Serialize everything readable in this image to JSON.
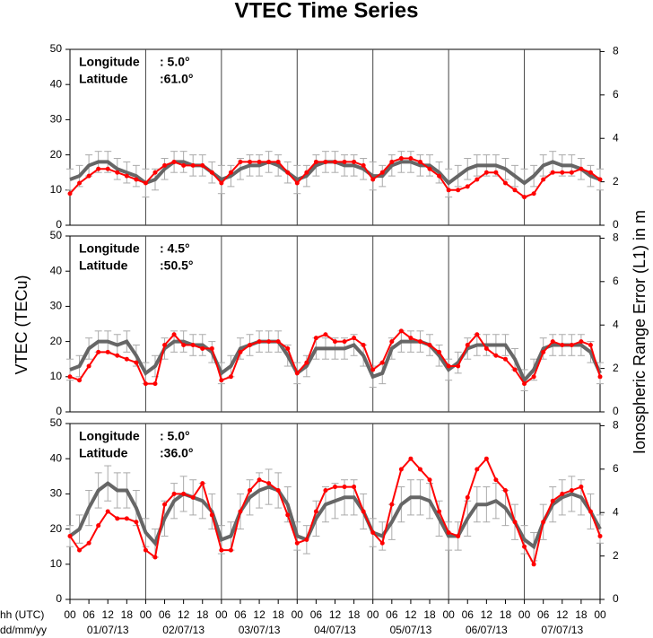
{
  "title": "VTEC Time Series",
  "ylabel": "VTEC (TECu)",
  "y2label": "Ionospheric Range Error (L1) in m",
  "x_axis_labels": [
    "hh (UTC)",
    "dd/mm/yy"
  ],
  "chart_data": [
    {
      "type": "line",
      "info": [
        [
          "Longitude",
          ":  5.0°"
        ],
        [
          "Latitude",
          ":61.0°"
        ]
      ],
      "x": [
        0,
        3,
        6,
        9,
        12,
        15,
        18,
        21,
        24,
        27,
        30,
        33,
        36,
        39,
        42,
        45,
        48,
        51,
        54,
        57,
        60,
        63,
        66,
        69,
        72,
        75,
        78,
        81,
        84,
        87,
        90,
        93,
        96,
        99,
        102,
        105,
        108,
        111,
        114,
        117,
        120,
        123,
        126,
        129,
        132,
        135,
        138,
        141,
        144,
        147,
        150,
        153,
        156,
        159,
        162,
        165,
        168
      ],
      "xlim": [
        0,
        168
      ],
      "ylim": [
        0,
        50
      ],
      "yticks": [
        0,
        10,
        20,
        30,
        40,
        50
      ],
      "y2lim": [
        0,
        8.1
      ],
      "y2ticks": [
        0,
        2,
        4,
        6,
        8
      ],
      "vlines": [
        24,
        48,
        72,
        96,
        120,
        144
      ],
      "series": [
        {
          "color": "#666666",
          "values": [
            13,
            14,
            17,
            18,
            18,
            16,
            15,
            14,
            12,
            13,
            16,
            18,
            18,
            17,
            17,
            15,
            13,
            14,
            16,
            17,
            17,
            18,
            17,
            15,
            13,
            14,
            17,
            18,
            18,
            17,
            17,
            16,
            14,
            14,
            17,
            18,
            18,
            17,
            17,
            15,
            12,
            14,
            16,
            17,
            17,
            17,
            16,
            14,
            12,
            14,
            17,
            18,
            17,
            17,
            16,
            14,
            13
          ],
          "errors": [
            3,
            3,
            3,
            3,
            3,
            3,
            3,
            3,
            4,
            3,
            3,
            3,
            3,
            3,
            3,
            3,
            4,
            3,
            3,
            3,
            3,
            3,
            3,
            3,
            4,
            3,
            3,
            3,
            3,
            3,
            3,
            3,
            4,
            3,
            3,
            3,
            3,
            3,
            3,
            3,
            4,
            3,
            3,
            3,
            3,
            3,
            3,
            3,
            4,
            3,
            3,
            3,
            3,
            3,
            3,
            3,
            3
          ]
        },
        {
          "color": "#ff0000",
          "values": [
            9,
            12,
            14,
            16,
            16,
            15,
            14,
            13,
            12,
            15,
            17,
            18,
            17,
            17,
            17,
            15,
            12,
            15,
            18,
            18,
            18,
            18,
            18,
            15,
            12,
            15,
            18,
            18,
            18,
            18,
            18,
            17,
            13,
            15,
            18,
            19,
            19,
            18,
            16,
            14,
            10,
            10,
            11,
            13,
            15,
            15,
            12,
            10,
            8,
            9,
            13,
            15,
            15,
            15,
            16,
            15,
            13
          ]
        }
      ]
    },
    {
      "type": "line",
      "info": [
        [
          "Longitude",
          ":  4.5°"
        ],
        [
          "Latitude",
          ":50.5°"
        ]
      ],
      "x": [
        0,
        3,
        6,
        9,
        12,
        15,
        18,
        21,
        24,
        27,
        30,
        33,
        36,
        39,
        42,
        45,
        48,
        51,
        54,
        57,
        60,
        63,
        66,
        69,
        72,
        75,
        78,
        81,
        84,
        87,
        90,
        93,
        96,
        99,
        102,
        105,
        108,
        111,
        114,
        117,
        120,
        123,
        126,
        129,
        132,
        135,
        138,
        141,
        144,
        147,
        150,
        153,
        156,
        159,
        162,
        165,
        168
      ],
      "xlim": [
        0,
        168
      ],
      "ylim": [
        0,
        50
      ],
      "yticks": [
        0,
        10,
        20,
        30,
        40,
        50
      ],
      "y2lim": [
        0,
        8.1
      ],
      "y2ticks": [
        0,
        2,
        4,
        6,
        8
      ],
      "vlines": [
        24,
        48,
        72,
        96,
        120,
        144
      ],
      "series": [
        {
          "color": "#666666",
          "values": [
            12,
            13,
            18,
            20,
            20,
            19,
            20,
            16,
            11,
            13,
            18,
            20,
            20,
            19,
            19,
            17,
            11,
            13,
            18,
            19,
            20,
            20,
            20,
            16,
            11,
            13,
            18,
            18,
            18,
            18,
            19,
            16,
            10,
            11,
            18,
            20,
            20,
            20,
            19,
            16,
            12,
            14,
            18,
            19,
            19,
            19,
            19,
            15,
            9,
            12,
            18,
            19,
            19,
            19,
            19,
            17,
            11
          ],
          "errors": [
            3,
            3,
            3,
            3,
            3,
            3,
            3,
            3,
            3,
            3,
            3,
            3,
            3,
            3,
            3,
            3,
            3,
            3,
            3,
            3,
            3,
            3,
            3,
            3,
            3,
            3,
            3,
            3,
            3,
            3,
            3,
            3,
            3,
            3,
            3,
            3,
            3,
            3,
            3,
            3,
            3,
            3,
            3,
            3,
            3,
            3,
            3,
            3,
            3,
            3,
            3,
            3,
            3,
            3,
            3,
            3,
            3
          ]
        },
        {
          "color": "#ff0000",
          "values": [
            10,
            9,
            13,
            17,
            17,
            16,
            15,
            14,
            8,
            8,
            19,
            22,
            19,
            19,
            18,
            18,
            9,
            10,
            17,
            19,
            20,
            20,
            20,
            18,
            11,
            14,
            21,
            22,
            20,
            20,
            21,
            19,
            12,
            14,
            20,
            23,
            21,
            20,
            19,
            17,
            13,
            13,
            19,
            22,
            18,
            16,
            15,
            12,
            8,
            10,
            17,
            20,
            19,
            19,
            20,
            19,
            10
          ]
        }
      ]
    },
    {
      "type": "line",
      "info": [
        [
          "Longitude",
          ":  5.0°"
        ],
        [
          "Latitude",
          ":36.0°"
        ]
      ],
      "x": [
        0,
        3,
        6,
        9,
        12,
        15,
        18,
        21,
        24,
        27,
        30,
        33,
        36,
        39,
        42,
        45,
        48,
        51,
        54,
        57,
        60,
        63,
        66,
        69,
        72,
        75,
        78,
        81,
        84,
        87,
        90,
        93,
        96,
        99,
        102,
        105,
        108,
        111,
        114,
        117,
        120,
        123,
        126,
        129,
        132,
        135,
        138,
        141,
        144,
        147,
        150,
        153,
        156,
        159,
        162,
        165,
        168
      ],
      "xlim": [
        0,
        168
      ],
      "ylim": [
        0,
        50
      ],
      "yticks": [
        0,
        10,
        20,
        30,
        40,
        50
      ],
      "y2lim": [
        0,
        8.1
      ],
      "y2ticks": [
        0,
        2,
        4,
        6,
        8
      ],
      "vlines": [
        24,
        48,
        72,
        96,
        120,
        144
      ],
      "xticks": [
        {
          "value": 0,
          "label": "00"
        },
        {
          "value": 6,
          "label": "06"
        },
        {
          "value": 12,
          "label": "12"
        },
        {
          "value": 18,
          "label": "18"
        },
        {
          "value": 24,
          "label": "00"
        },
        {
          "value": 30,
          "label": "06"
        },
        {
          "value": 36,
          "label": "12"
        },
        {
          "value": 42,
          "label": "18"
        },
        {
          "value": 48,
          "label": "00"
        },
        {
          "value": 54,
          "label": "06"
        },
        {
          "value": 60,
          "label": "12"
        },
        {
          "value": 66,
          "label": "18"
        },
        {
          "value": 72,
          "label": "00"
        },
        {
          "value": 78,
          "label": "06"
        },
        {
          "value": 84,
          "label": "12"
        },
        {
          "value": 90,
          "label": "18"
        },
        {
          "value": 96,
          "label": "00"
        },
        {
          "value": 102,
          "label": "06"
        },
        {
          "value": 108,
          "label": "12"
        },
        {
          "value": 114,
          "label": "18"
        },
        {
          "value": 120,
          "label": "00"
        },
        {
          "value": 126,
          "label": "06"
        },
        {
          "value": 132,
          "label": "12"
        },
        {
          "value": 138,
          "label": "18"
        },
        {
          "value": 144,
          "label": "00"
        },
        {
          "value": 150,
          "label": "06"
        },
        {
          "value": 156,
          "label": "12"
        },
        {
          "value": 162,
          "label": "18"
        },
        {
          "value": 168,
          "label": "00"
        }
      ],
      "date_ticks": [
        {
          "value": 12,
          "label": "01/07/13"
        },
        {
          "value": 36,
          "label": "02/07/13"
        },
        {
          "value": 60,
          "label": "03/07/13"
        },
        {
          "value": 84,
          "label": "04/07/13"
        },
        {
          "value": 108,
          "label": "05/07/13"
        },
        {
          "value": 132,
          "label": "06/07/13"
        },
        {
          "value": 156,
          "label": "07/07/13"
        }
      ],
      "series": [
        {
          "color": "#666666",
          "values": [
            18,
            20,
            26,
            31,
            33,
            31,
            31,
            26,
            19,
            16,
            23,
            28,
            30,
            29,
            28,
            25,
            17,
            18,
            25,
            29,
            31,
            32,
            31,
            27,
            18,
            17,
            23,
            27,
            28,
            29,
            29,
            25,
            19,
            18,
            22,
            27,
            29,
            29,
            28,
            23,
            18,
            18,
            23,
            27,
            27,
            28,
            26,
            22,
            17,
            15,
            22,
            27,
            29,
            30,
            29,
            25,
            20
          ],
          "errors": [
            3,
            4,
            5,
            5,
            5,
            5,
            5,
            5,
            4,
            4,
            5,
            5,
            5,
            5,
            5,
            5,
            4,
            4,
            5,
            5,
            5,
            5,
            5,
            5,
            4,
            4,
            5,
            5,
            5,
            5,
            5,
            5,
            4,
            4,
            5,
            5,
            5,
            5,
            5,
            5,
            4,
            4,
            5,
            5,
            5,
            5,
            5,
            5,
            4,
            4,
            5,
            5,
            5,
            5,
            5,
            5,
            4
          ]
        },
        {
          "color": "#ff0000",
          "values": [
            18,
            14,
            16,
            21,
            25,
            23,
            23,
            22,
            14,
            12,
            27,
            30,
            30,
            29,
            33,
            24,
            14,
            14,
            25,
            31,
            34,
            33,
            31,
            24,
            16,
            17,
            25,
            31,
            32,
            32,
            32,
            25,
            19,
            16,
            27,
            37,
            40,
            37,
            34,
            25,
            19,
            18,
            29,
            37,
            40,
            34,
            31,
            22,
            15,
            10,
            22,
            28,
            30,
            31,
            32,
            25,
            18
          ]
        }
      ]
    }
  ]
}
